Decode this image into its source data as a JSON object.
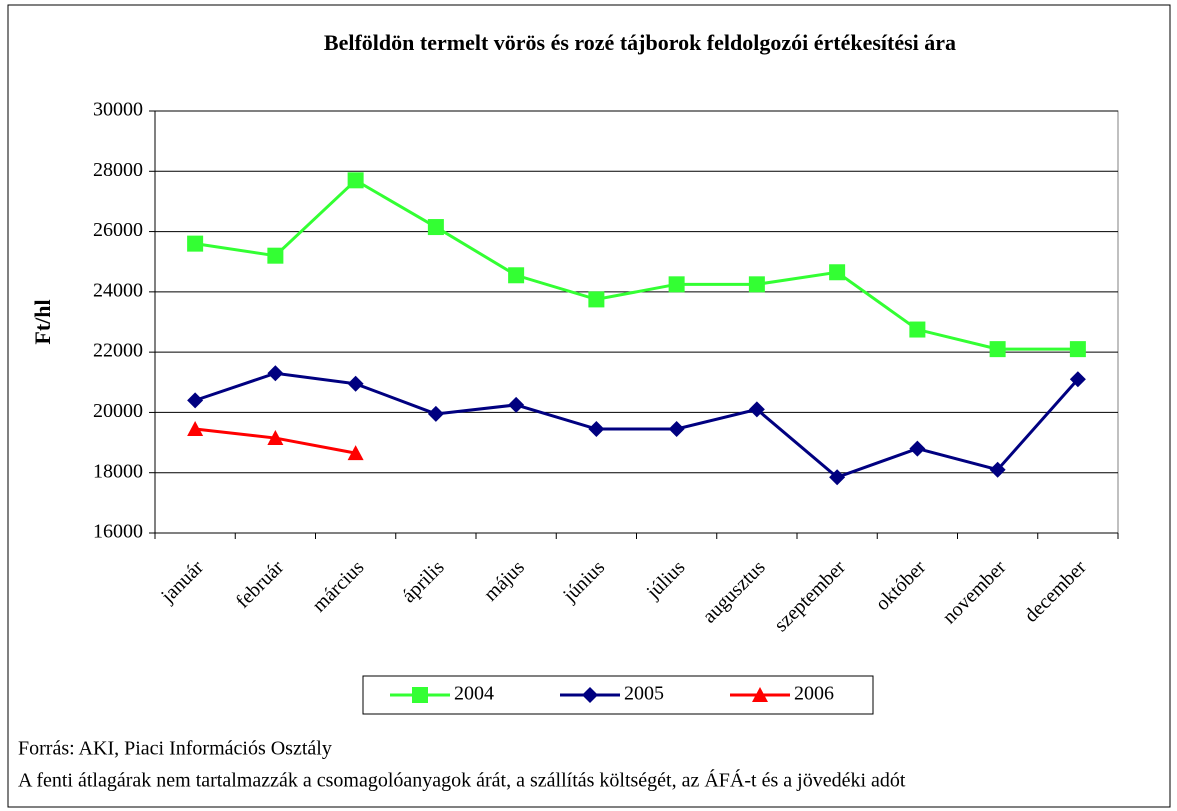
{
  "chart_data": {
    "type": "line",
    "title": "Belföldön termelt vörös és rozé tájborok feldolgozói értékesítési ára",
    "y_label": "Ft/hl",
    "categories": [
      "január",
      "február",
      "március",
      "április",
      "május",
      "június",
      "július",
      "augusztus",
      "szeptember",
      "október",
      "november",
      "december"
    ],
    "series": [
      {
        "name": "2004",
        "color": "#33ff33",
        "marker": "square",
        "values": [
          25600,
          25200,
          27700,
          26150,
          24550,
          23750,
          24250,
          24250,
          24650,
          22750,
          22100,
          22100
        ]
      },
      {
        "name": "2005",
        "color": "#000080",
        "marker": "diamond",
        "values": [
          20400,
          21300,
          20950,
          19950,
          20250,
          19450,
          19450,
          20100,
          17850,
          18800,
          18100,
          21100
        ]
      },
      {
        "name": "2006",
        "color": "#ff0000",
        "marker": "triangle",
        "values": [
          19450,
          19150,
          18650,
          null,
          null,
          null,
          null,
          null,
          null,
          null,
          null,
          null
        ]
      }
    ],
    "ylim": [
      16000,
      30000
    ],
    "yticks": [
      16000,
      18000,
      20000,
      22000,
      24000,
      26000,
      28000,
      30000
    ],
    "grid": true,
    "legend": "bottom",
    "notes": [
      "Forrás: AKI, Piaci Információs Osztály",
      "A fenti átlagárak nem tartalmazzák a csomagolóanyagok árát, a szállítás költségét, az ÁFÁ-t és a jövedéki adót"
    ]
  }
}
